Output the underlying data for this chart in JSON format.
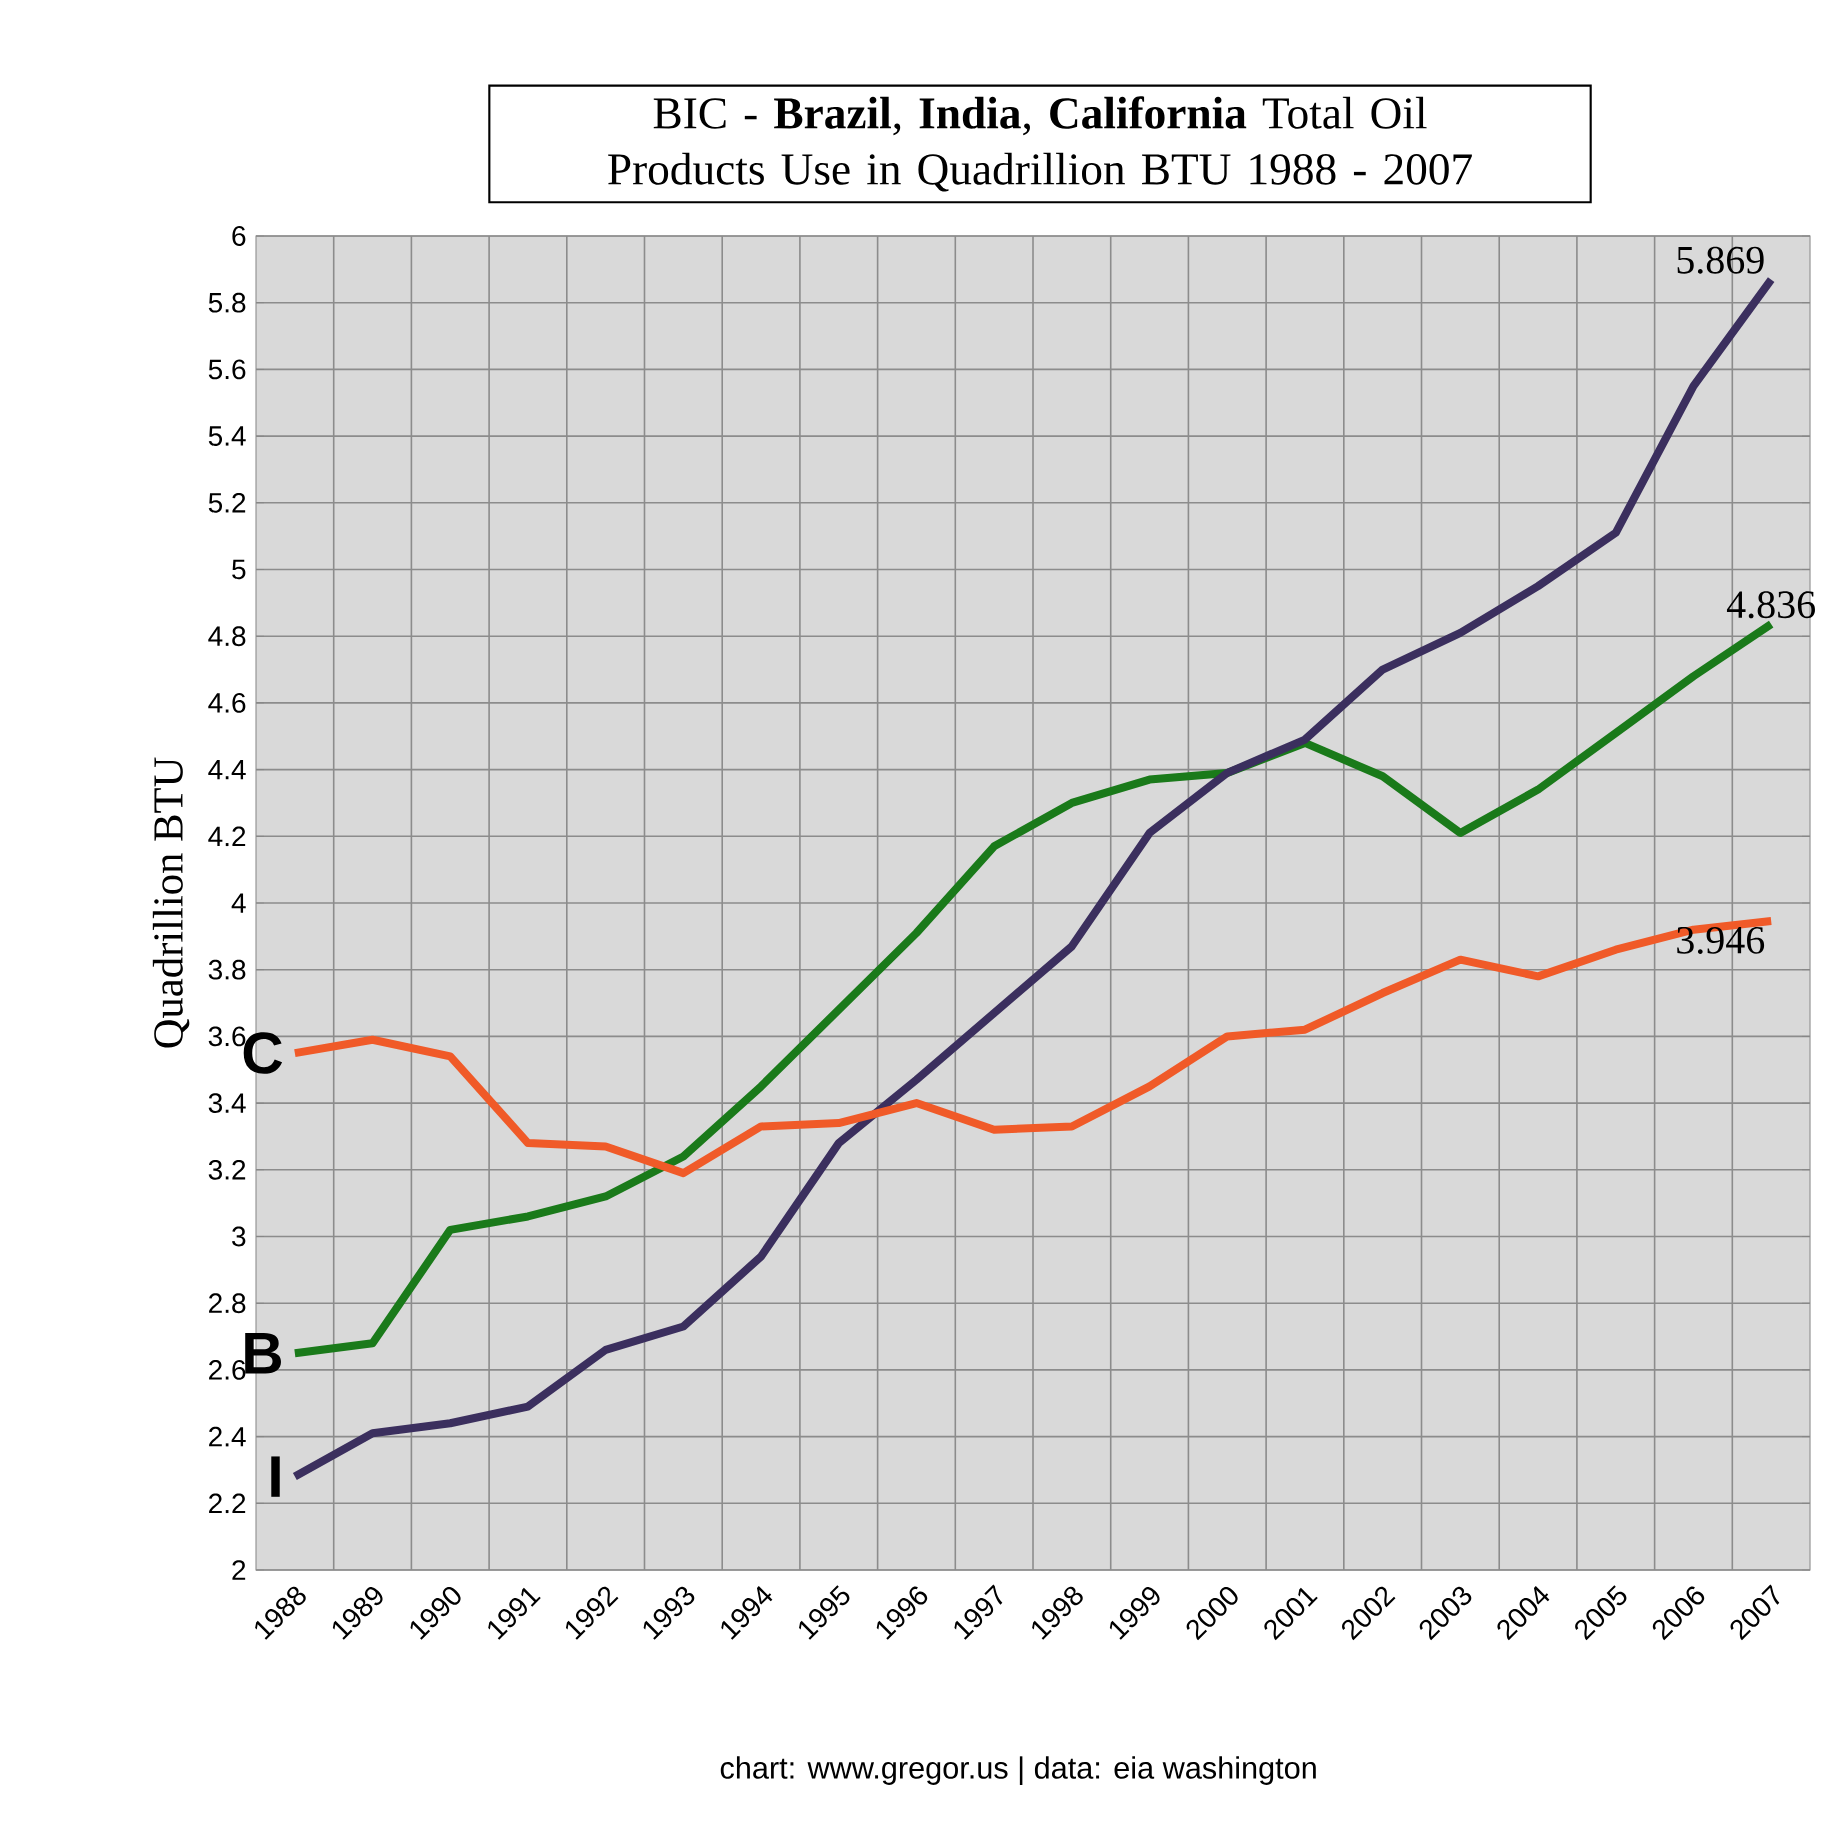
{
  "chart_data": {
    "type": "line",
    "title": "BIC - **Brazil**, **India**, **California** Total Oil Products Use in Quadrillion BTU 1988 - 2007",
    "ylabel": "Quadrillion  BTU",
    "categories": [
      "1988",
      "1989",
      "1990",
      "1991",
      "1992",
      "1993",
      "1994",
      "1995",
      "1996",
      "1997",
      "1998",
      "1999",
      "2000",
      "2001",
      "2002",
      "2003",
      "2004",
      "2005",
      "2006",
      "2007"
    ],
    "series": [
      {
        "name": "B",
        "color": "#1a7a1a",
        "values": [
          2.65,
          2.68,
          3.02,
          3.06,
          3.12,
          3.24,
          3.45,
          3.68,
          3.91,
          4.17,
          4.3,
          4.37,
          4.39,
          4.48,
          4.38,
          4.21,
          4.34,
          4.51,
          4.68,
          4.836
        ],
        "value_labels": [
          null,
          null,
          null,
          null,
          null,
          null,
          null,
          null,
          null,
          null,
          null,
          null,
          null,
          null,
          null,
          null,
          null,
          null,
          null,
          "4.836"
        ]
      },
      {
        "name": "I",
        "color": "#3b2f5e",
        "values": [
          2.28,
          2.41,
          2.44,
          2.49,
          2.66,
          2.73,
          2.94,
          3.28,
          3.47,
          3.67,
          3.87,
          4.21,
          4.39,
          4.49,
          4.7,
          4.81,
          4.95,
          5.11,
          5.55,
          5.869
        ],
        "value_labels": [
          null,
          null,
          null,
          null,
          null,
          null,
          null,
          null,
          null,
          null,
          null,
          null,
          null,
          null,
          null,
          null,
          null,
          null,
          null,
          "5.869"
        ]
      },
      {
        "name": "C",
        "color": "#f05a28",
        "values": [
          3.55,
          3.59,
          3.54,
          3.28,
          3.27,
          3.19,
          3.33,
          3.34,
          3.4,
          3.32,
          3.33,
          3.45,
          3.6,
          3.62,
          3.73,
          3.83,
          3.78,
          3.86,
          3.92,
          3.946
        ],
        "value_labels": [
          null,
          null,
          null,
          null,
          null,
          null,
          null,
          null,
          null,
          null,
          null,
          null,
          null,
          null,
          null,
          null,
          null,
          null,
          null,
          "3.946"
        ]
      }
    ],
    "ylim": [
      2,
      6
    ],
    "yticks": [
      2,
      2.2,
      2.4,
      2.6,
      2.8,
      3,
      3.2,
      3.4,
      3.6,
      3.8,
      4,
      4.2,
      4.4,
      4.6,
      4.8,
      5,
      5.2,
      5.4,
      5.6,
      5.8,
      6
    ],
    "grid": true,
    "legend": false,
    "marker": "none",
    "line_style": "solid",
    "annotations": [
      "chart: www.gregor.us   |   data: eia washington"
    ]
  }
}
